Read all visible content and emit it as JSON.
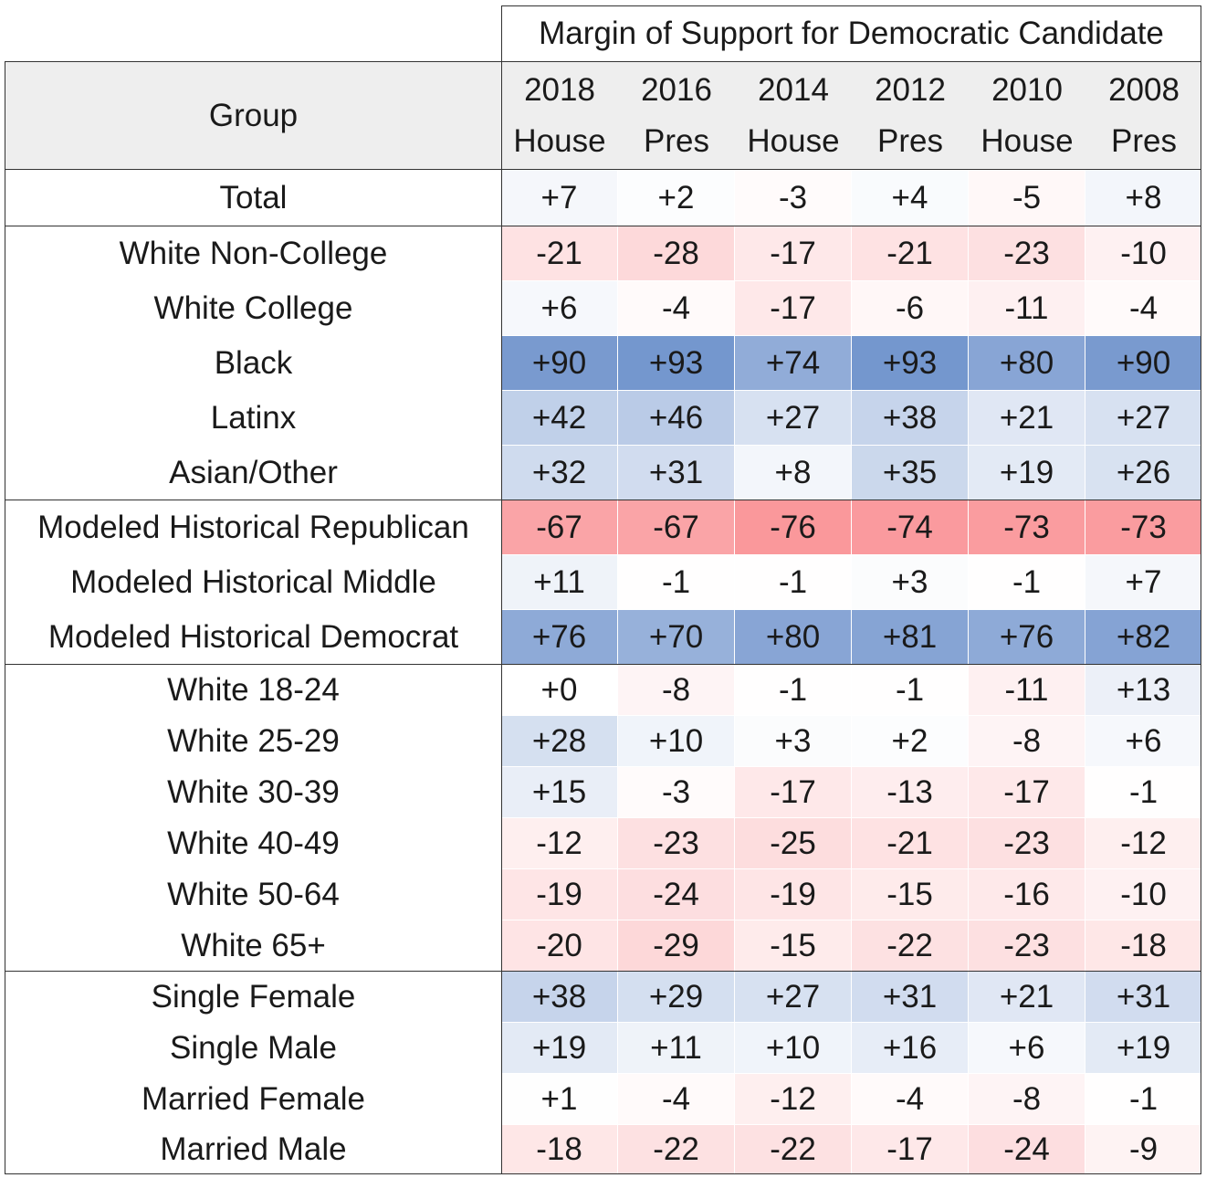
{
  "chart_data": {
    "type": "table",
    "title": "Margin of Support for Democratic Candidate",
    "group_header": "Group",
    "columns": [
      {
        "year": "2018",
        "type": "House"
      },
      {
        "year": "2016",
        "type": "Pres"
      },
      {
        "year": "2014",
        "type": "House"
      },
      {
        "year": "2012",
        "type": "Pres"
      },
      {
        "year": "2010",
        "type": "House"
      },
      {
        "year": "2008",
        "type": "Pres"
      }
    ],
    "rows": [
      {
        "label": "Total",
        "values": [
          "+7",
          "+2",
          "-3",
          "+4",
          "-5",
          "+8"
        ]
      },
      {
        "label": "White Non-College",
        "values": [
          "-21",
          "-28",
          "-17",
          "-21",
          "-23",
          "-10"
        ]
      },
      {
        "label": "White College",
        "values": [
          "+6",
          "-4",
          "-17",
          "-6",
          "-11",
          "-4"
        ]
      },
      {
        "label": "Black",
        "values": [
          "+90",
          "+93",
          "+74",
          "+93",
          "+80",
          "+90"
        ]
      },
      {
        "label": "Latinx",
        "values": [
          "+42",
          "+46",
          "+27",
          "+38",
          "+21",
          "+27"
        ]
      },
      {
        "label": "Asian/Other",
        "values": [
          "+32",
          "+31",
          "+8",
          "+35",
          "+19",
          "+26"
        ]
      },
      {
        "label": "Modeled Historical Republican",
        "values": [
          "-67",
          "-67",
          "-76",
          "-74",
          "-73",
          "-73"
        ]
      },
      {
        "label": "Modeled Historical Middle",
        "values": [
          "+11",
          "-1",
          "-1",
          "+3",
          "-1",
          "+7"
        ]
      },
      {
        "label": "Modeled Historical Democrat",
        "values": [
          "+76",
          "+70",
          "+80",
          "+81",
          "+76",
          "+82"
        ]
      },
      {
        "label": "White 18-24",
        "values": [
          "+0",
          "-8",
          "-1",
          "-1",
          "-11",
          "+13"
        ]
      },
      {
        "label": "White 25-29",
        "values": [
          "+28",
          "+10",
          "+3",
          "+2",
          "-8",
          "+6"
        ]
      },
      {
        "label": "White 30-39",
        "values": [
          "+15",
          "-3",
          "-17",
          "-13",
          "-17",
          "-1"
        ]
      },
      {
        "label": "White 40-49",
        "values": [
          "-12",
          "-23",
          "-25",
          "-21",
          "-23",
          "-12"
        ]
      },
      {
        "label": "White 50-64",
        "values": [
          "-19",
          "-24",
          "-19",
          "-15",
          "-16",
          "-10"
        ]
      },
      {
        "label": "White 65+",
        "values": [
          "-20",
          "-29",
          "-15",
          "-22",
          "-23",
          "-18"
        ]
      },
      {
        "label": "Single Female",
        "values": [
          "+38",
          "+29",
          "+27",
          "+31",
          "+21",
          "+31"
        ]
      },
      {
        "label": "Single Male",
        "values": [
          "+19",
          "+11",
          "+10",
          "+16",
          "+6",
          "+19"
        ]
      },
      {
        "label": "Married Female",
        "values": [
          "+1",
          "-4",
          "-12",
          "-4",
          "-8",
          "-1"
        ]
      },
      {
        "label": "Married Male",
        "values": [
          "-18",
          "-22",
          "-22",
          "-17",
          "-24",
          "-9"
        ]
      }
    ],
    "color_scale": {
      "positive": "#6a8fca",
      "negative": "#f8777c",
      "neutral": "#ffffff",
      "max_abs": 100
    }
  }
}
